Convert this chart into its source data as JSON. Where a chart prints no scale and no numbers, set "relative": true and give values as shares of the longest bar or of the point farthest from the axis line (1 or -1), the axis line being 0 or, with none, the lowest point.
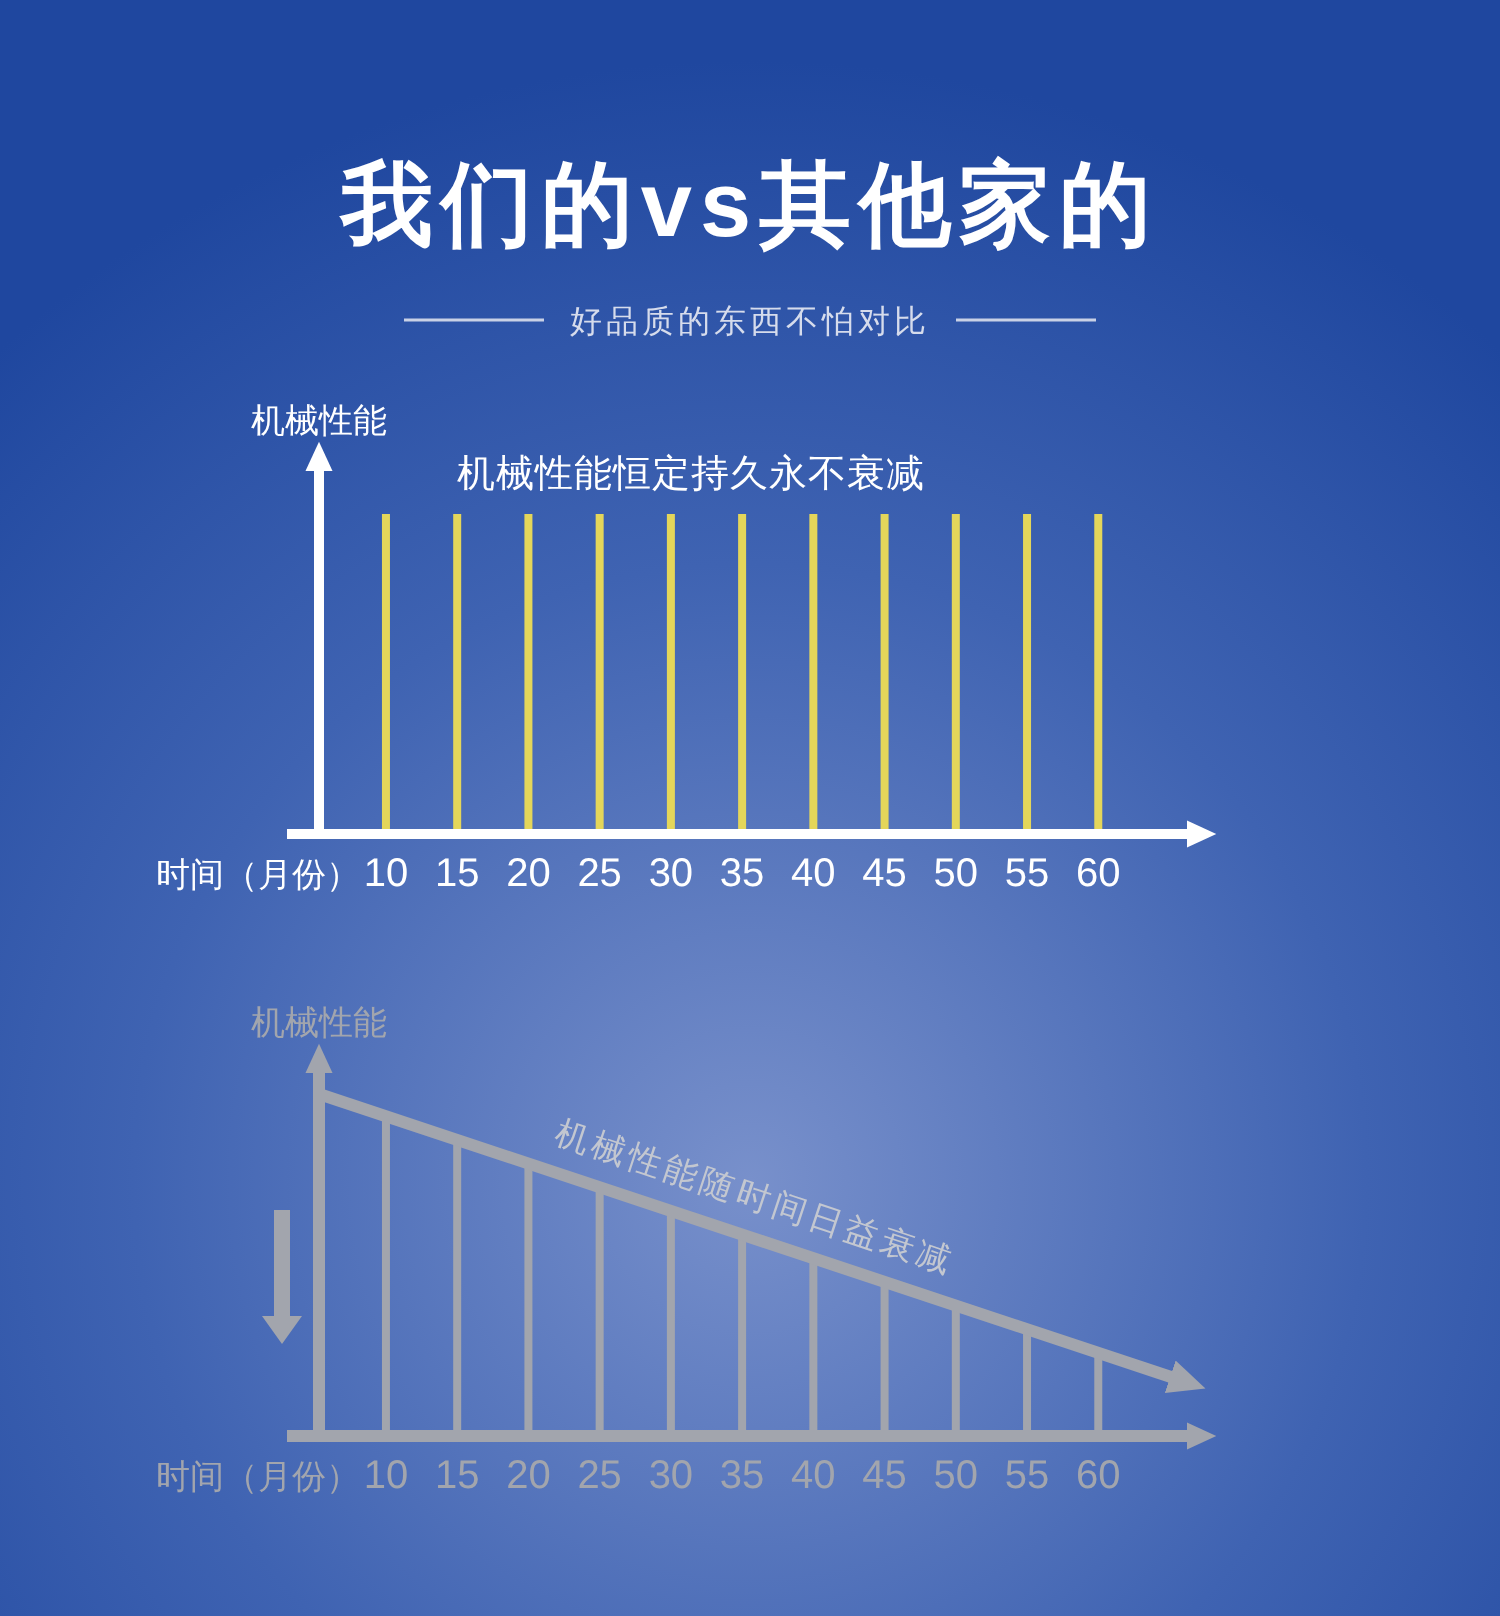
{
  "chart_data": [
    {
      "type": "bar",
      "title": "我们的vs其他家的",
      "subtitle": "好品质的东西不怕对比",
      "ylabel": "机械性能",
      "xlabel": "时间（月份）",
      "annotations": [
        "机械性能恒定持久永不衰减"
      ],
      "relative": true,
      "xlim": [
        5.3,
        67
      ],
      "xticks": [
        10,
        15,
        20,
        25,
        30,
        35,
        40,
        45,
        50,
        55,
        60
      ],
      "x": [
        10,
        15,
        20,
        25,
        30,
        35,
        40,
        45,
        50,
        55,
        60
      ],
      "values": [
        1,
        1,
        1,
        1,
        1,
        1,
        1,
        1,
        1,
        1,
        1
      ],
      "color": "#e4d65a"
    },
    {
      "type": "bar",
      "ylabel": "机械性能",
      "xlabel": "时间（月份）",
      "annotations": [
        "机械性能随时间日益衰减"
      ],
      "relative": true,
      "xlim": [
        5.3,
        67
      ],
      "xticks": [
        10,
        15,
        20,
        25,
        30,
        35,
        40,
        45,
        50,
        55,
        60
      ],
      "series": [
        {
          "x": [
            10,
            15,
            20,
            25,
            30,
            35,
            40,
            45,
            50,
            55,
            60
          ],
          "values": [
            0.94,
            0.87,
            0.8,
            0.73,
            0.66,
            0.59,
            0.52,
            0.45,
            0.38,
            0.31,
            0.24
          ],
          "color": "#a2a5ad"
        },
        {
          "type": "line",
          "x": [
            5.3,
            66
          ],
          "values": [
            1,
            0.16
          ],
          "color": "#a2a5ad"
        }
      ]
    }
  ]
}
